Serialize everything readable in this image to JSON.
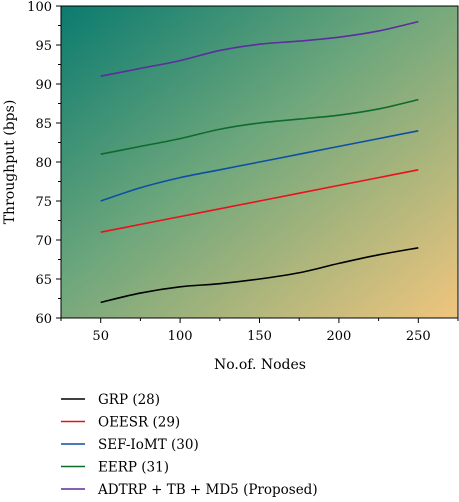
{
  "chart_data": {
    "type": "line",
    "xlabel": "No.of. Nodes",
    "ylabel": "Throughput (bps)",
    "xlim": [
      25,
      275
    ],
    "ylim": [
      60,
      100
    ],
    "x_ticks": [
      50,
      100,
      150,
      200,
      250
    ],
    "y_ticks": [
      60,
      65,
      70,
      75,
      80,
      85,
      90,
      95,
      100
    ],
    "background": "diagonal gradient from teal (top-left) to tan (bottom-right)",
    "grid": false,
    "legend_position": "below",
    "series": [
      {
        "name": "GRP (28)",
        "color": "#000000",
        "x": [
          50,
          75,
          100,
          125,
          150,
          175,
          200,
          225,
          250
        ],
        "y": [
          62,
          63.2,
          64,
          64.4,
          65,
          65.8,
          67,
          68.1,
          69
        ]
      },
      {
        "name": "OEESR (29)",
        "color": "#e8121b",
        "x": [
          50,
          75,
          100,
          125,
          150,
          175,
          200,
          225,
          250
        ],
        "y": [
          71,
          72,
          73,
          74,
          75,
          76,
          77,
          78,
          79
        ]
      },
      {
        "name": "SEF-IoMT (30)",
        "color": "#0d4fa3",
        "x": [
          50,
          75,
          100,
          125,
          150,
          175,
          200,
          225,
          250
        ],
        "y": [
          75,
          76.7,
          78,
          79,
          80,
          81,
          82,
          83,
          84
        ]
      },
      {
        "name": "EERP (31)",
        "color": "#0f6b2c",
        "x": [
          50,
          75,
          100,
          125,
          150,
          175,
          200,
          225,
          250
        ],
        "y": [
          81,
          82,
          83,
          84.2,
          85,
          85.5,
          86,
          86.8,
          88
        ]
      },
      {
        "name": "ADTRP + TB + MD5 (Proposed)",
        "color": "#5b2d9e",
        "x": [
          50,
          75,
          100,
          125,
          150,
          175,
          200,
          225,
          250
        ],
        "y": [
          91,
          92,
          93,
          94.3,
          95.1,
          95.5,
          96,
          96.8,
          98
        ]
      }
    ]
  }
}
